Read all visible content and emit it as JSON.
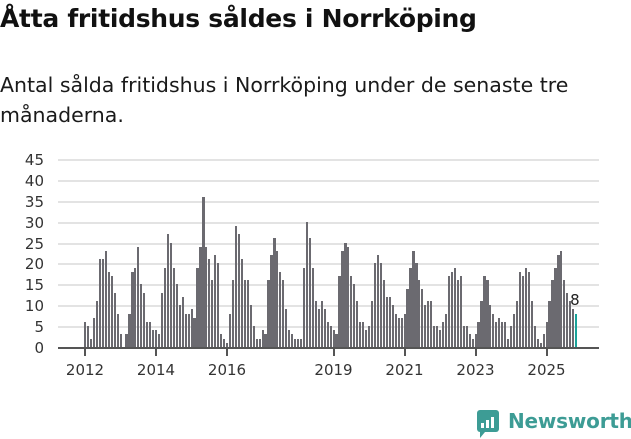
{
  "header": {
    "title": "Åtta fritidshus såldes i Norrköping",
    "subtitle": "Antal sålda fritidshus i Norrköping under de senaste tre månaderna."
  },
  "branding": {
    "logo_text": "Newsworthy",
    "logo_icon": "bar-chart-speech-bubble-icon",
    "color": "#3d9c95"
  },
  "chart_data": {
    "type": "bar",
    "title": "Åtta fritidshus såldes i Norrköping",
    "subtitle": "Antal sålda fritidshus i Norrköping under de senaste tre månaderna.",
    "xlabel": "",
    "ylabel": "",
    "ylim": [
      0,
      45
    ],
    "yticks": [
      0,
      5,
      10,
      15,
      20,
      25,
      30,
      35,
      40,
      45
    ],
    "xticks": [
      "2012",
      "2014",
      "2016",
      "2019",
      "2021",
      "2023",
      "2025"
    ],
    "grid": true,
    "legend": null,
    "bar_color": "#6b6a70",
    "highlight_color": "#1aa39a",
    "start": "2012-01",
    "frequency": "monthly",
    "annotations": [
      {
        "label": "8",
        "target": "last"
      }
    ],
    "values": [
      6,
      5,
      2,
      7,
      11,
      21,
      21,
      23,
      18,
      17,
      13,
      8,
      3,
      0,
      3,
      8,
      18,
      19,
      24,
      15,
      13,
      6,
      6,
      4,
      4,
      3,
      13,
      19,
      27,
      25,
      19,
      15,
      10,
      12,
      8,
      8,
      9,
      7,
      19,
      24,
      36,
      24,
      21,
      16,
      22,
      20,
      3,
      2,
      1,
      8,
      16,
      29,
      27,
      21,
      16,
      16,
      10,
      5,
      2,
      2,
      4,
      3,
      16,
      22,
      26,
      23,
      18,
      16,
      9,
      4,
      3,
      2,
      2,
      2,
      19,
      30,
      26,
      19,
      11,
      9,
      11,
      9,
      6,
      5,
      4,
      3,
      17,
      23,
      25,
      24,
      17,
      15,
      11,
      6,
      6,
      4,
      5,
      11,
      20,
      22,
      20,
      16,
      12,
      12,
      10,
      8,
      7,
      7,
      8,
      14,
      19,
      23,
      20,
      16,
      14,
      10,
      11,
      11,
      5,
      5,
      4,
      6,
      8,
      17,
      18,
      19,
      16,
      17,
      5,
      5,
      3,
      2,
      3,
      6,
      11,
      17,
      16,
      10,
      8,
      6,
      7,
      6,
      6,
      2,
      5,
      8,
      11,
      18,
      17,
      19,
      18,
      11,
      5,
      2,
      1,
      3,
      6,
      11,
      16,
      19,
      22,
      23,
      16,
      13,
      11,
      9,
      8
    ],
    "last_value": 8
  }
}
